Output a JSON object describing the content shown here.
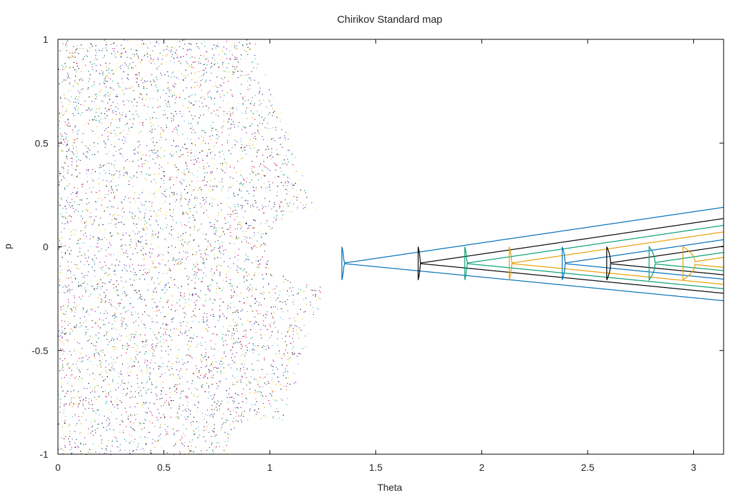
{
  "chart_data": {
    "type": "scatter",
    "title": "Chirikov Standard map",
    "xlabel": "Theta",
    "ylabel": "p",
    "xlim": [
      0,
      3.14159
    ],
    "ylim": [
      -1,
      1
    ],
    "x_ticks": [
      "0",
      "0.5",
      "1",
      "1.5",
      "2",
      "2.5",
      "3"
    ],
    "y_ticks": [
      "-1",
      "-0.5",
      "0",
      "0.5",
      "1"
    ],
    "grid": false,
    "legend": "none",
    "series": [
      {
        "color": "#006eb8",
        "x_at_p0": 1.34
      },
      {
        "color": "#000000",
        "x_at_p0": 1.7
      },
      {
        "color": "#009e73",
        "x_at_p0": 1.92
      },
      {
        "color": "#e69f00",
        "x_at_p0": 2.13
      },
      {
        "color": "#006eb8",
        "x_at_p0": 2.38
      },
      {
        "color": "#000000",
        "x_at_p0": 2.59
      },
      {
        "color": "#009e73",
        "x_at_p0": 2.79
      },
      {
        "color": "#e69f00",
        "x_at_p0": 2.95
      }
    ],
    "chaotic_region_colors": [
      "#7b1fa2",
      "#1a3c8c",
      "#009e73",
      "#e69f00",
      "#56b4e9",
      "#c00060",
      "#f0e442",
      "#000000"
    ]
  }
}
